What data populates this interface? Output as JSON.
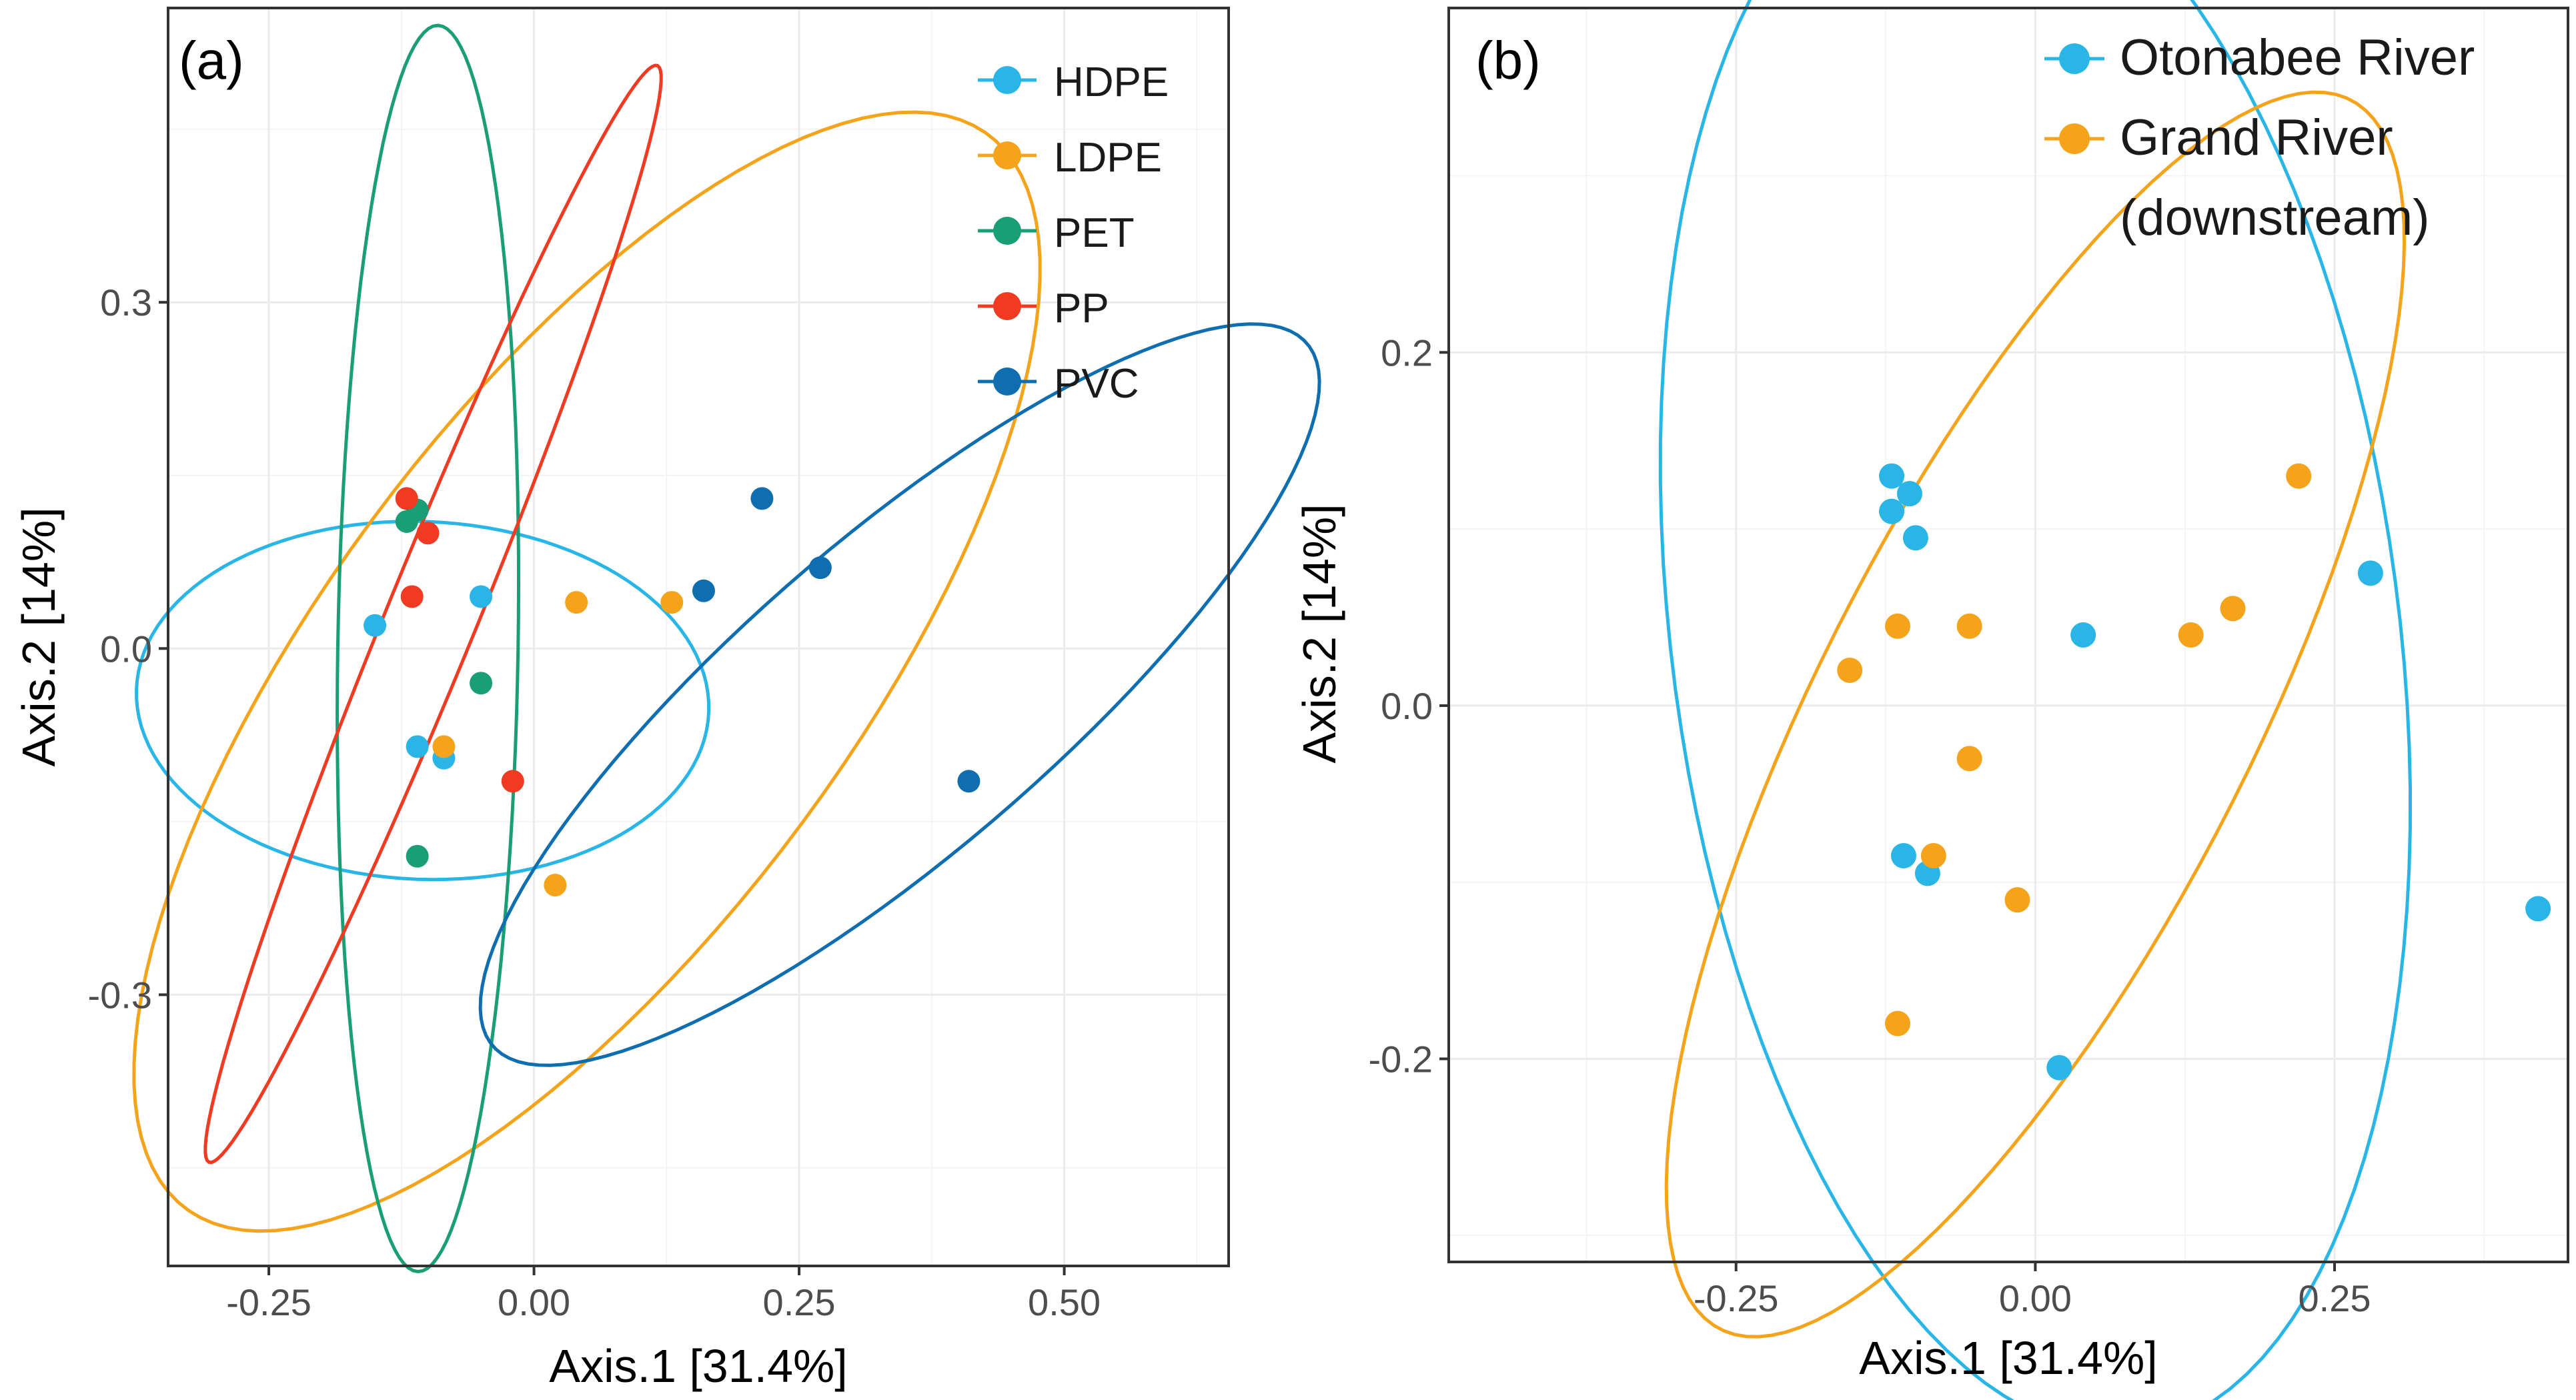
{
  "chart_data": [
    {
      "panel": "(a)",
      "type": "scatter",
      "title": "",
      "xlabel": "Axis.1   [31.4%]",
      "ylabel": "Axis.2   [14%]",
      "xlim": [
        -0.345,
        0.655
      ],
      "ylim": [
        -0.535,
        0.555
      ],
      "xticks": [
        -0.25,
        0.0,
        0.25,
        0.5
      ],
      "xtick_labels": [
        "-0.25",
        "0.00",
        "0.25",
        "0.50"
      ],
      "yticks": [
        -0.3,
        0.0,
        0.3
      ],
      "ytick_labels": [
        "-0.3",
        "0.0",
        "0.3"
      ],
      "legend_position": "top-right",
      "series": [
        {
          "name": "HDPE",
          "color": "#29b6e6",
          "points": [
            [
              -0.15,
              0.02
            ],
            [
              -0.05,
              0.045
            ],
            [
              -0.11,
              -0.085
            ],
            [
              -0.085,
              -0.095
            ]
          ],
          "ellipse": {
            "cx": -0.105,
            "cy": -0.045,
            "rx": 0.155,
            "ry": 0.27,
            "angle": 88
          }
        },
        {
          "name": "LDPE",
          "color": "#f5a31a",
          "points": [
            [
              0.04,
              0.04
            ],
            [
              0.13,
              0.04
            ],
            [
              -0.085,
              -0.085
            ],
            [
              0.02,
              -0.205
            ]
          ],
          "ellipse": {
            "cx": 0.05,
            "cy": -0.02,
            "rx": 0.6,
            "ry": 0.24,
            "angle": 50
          }
        },
        {
          "name": "PET",
          "color": "#1a9e76",
          "points": [
            [
              -0.11,
              0.12
            ],
            [
              -0.12,
              0.11
            ],
            [
              -0.05,
              -0.03
            ],
            [
              -0.11,
              -0.18
            ]
          ],
          "ellipse": {
            "cx": -0.1,
            "cy": 0.0,
            "rx": 0.54,
            "ry": 0.085,
            "angle": 89
          }
        },
        {
          "name": "PP",
          "color": "#f03a22",
          "points": [
            [
              -0.12,
              0.13
            ],
            [
              -0.1,
              0.1
            ],
            [
              -0.115,
              0.045
            ],
            [
              -0.02,
              -0.115
            ]
          ],
          "ellipse": {
            "cx": -0.095,
            "cy": 0.03,
            "rx": 0.52,
            "ry": 0.042,
            "angle": 66
          }
        },
        {
          "name": "PVC",
          "color": "#0f6eb0",
          "points": [
            [
              0.215,
              0.13
            ],
            [
              0.16,
              0.05
            ],
            [
              0.27,
              0.07
            ],
            [
              0.41,
              -0.115
            ]
          ],
          "ellipse": {
            "cx": 0.345,
            "cy": -0.04,
            "rx": 0.49,
            "ry": 0.14,
            "angle": 38
          }
        }
      ]
    },
    {
      "panel": "(b)",
      "type": "scatter",
      "title": "",
      "xlabel": "Axis.1   [31.4%]",
      "ylabel": "Axis.2   [14%]",
      "xlim": [
        -0.49,
        0.445
      ],
      "ylim": [
        -0.315,
        0.395
      ],
      "xticks": [
        -0.25,
        0.0,
        0.25
      ],
      "xtick_labels": [
        "-0.25",
        "0.00",
        "0.25"
      ],
      "yticks": [
        -0.2,
        0.0,
        0.2
      ],
      "ytick_labels": [
        "-0.2",
        "0.0",
        "0.2"
      ],
      "legend_position": "top-right",
      "series": [
        {
          "name": "Otonabee River",
          "color": "#29b6e6",
          "points": [
            [
              -0.12,
              0.13
            ],
            [
              -0.105,
              0.12
            ],
            [
              -0.12,
              0.11
            ],
            [
              -0.1,
              0.095
            ],
            [
              0.04,
              0.04
            ],
            [
              0.28,
              0.075
            ],
            [
              -0.11,
              -0.085
            ],
            [
              -0.09,
              -0.095
            ],
            [
              0.02,
              -0.205
            ],
            [
              0.42,
              -0.115
            ]
          ],
          "ellipse": {
            "cx": 0.0,
            "cy": 0.04,
            "rx": 0.46,
            "ry": 0.3,
            "angle": 105
          }
        },
        {
          "name": "Grand River\n(downstream)",
          "color": "#f5a31a",
          "points": [
            [
              -0.115,
              0.045
            ],
            [
              -0.155,
              0.02
            ],
            [
              -0.055,
              0.045
            ],
            [
              0.13,
              0.04
            ],
            [
              0.165,
              0.055
            ],
            [
              0.22,
              0.13
            ],
            [
              -0.055,
              -0.03
            ],
            [
              -0.085,
              -0.085
            ],
            [
              -0.015,
              -0.11
            ],
            [
              -0.115,
              -0.18
            ]
          ],
          "ellipse": {
            "cx": 0.0,
            "cy": -0.005,
            "rx": 0.44,
            "ry": 0.16,
            "angle": 50
          }
        }
      ]
    }
  ]
}
